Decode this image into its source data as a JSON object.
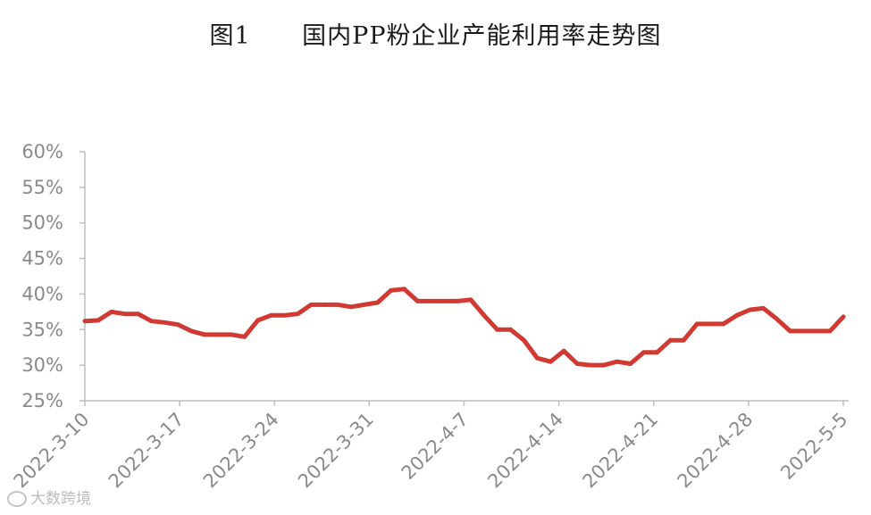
{
  "chart_data": {
    "type": "line",
    "title": "图1      国内PP粉企业产能利用率走势图",
    "xlabel": "",
    "ylabel": "",
    "ylim": [
      25,
      60
    ],
    "yticks": [
      "25%",
      "30%",
      "35%",
      "40%",
      "45%",
      "50%",
      "55%",
      "60%"
    ],
    "xtick_labels": [
      "2022-3-10",
      "2022-3-17",
      "2022-3-24",
      "2022-3-31",
      "2022-4-7",
      "2022-4-14",
      "2022-4-21",
      "2022-4-28",
      "2022-5-5"
    ],
    "grid": false,
    "line_color": "#d13a32",
    "axis_color": "#bfbfbf",
    "series": [
      {
        "values": [
          36.2,
          36.3,
          37.5,
          37.2,
          37.2,
          36.2,
          36.0,
          35.7,
          34.8,
          34.3,
          34.3,
          34.3,
          34.0,
          36.3,
          37.0,
          37.0,
          37.2,
          38.5,
          38.5,
          38.5,
          38.2,
          38.5,
          38.8,
          40.5,
          40.7,
          39.0,
          39.0,
          39.0,
          39.0,
          39.2,
          37.0,
          35.0,
          35.0,
          33.5,
          31.0,
          30.5,
          32.0,
          30.2,
          30.0,
          30.0,
          30.5,
          30.2,
          31.8,
          31.8,
          33.5,
          33.5,
          35.8,
          35.8,
          35.8,
          37.0,
          37.8,
          38.0,
          36.5,
          34.8,
          34.8,
          34.8,
          34.8,
          36.8
        ]
      }
    ]
  },
  "watermark": {
    "text": "大数跨境",
    "icon": "camera-logo-icon"
  }
}
